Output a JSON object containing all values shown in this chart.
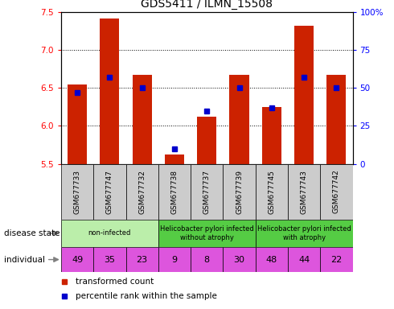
{
  "title": "GDS5411 / ILMN_15508",
  "samples": [
    "GSM677733",
    "GSM677747",
    "GSM677732",
    "GSM677738",
    "GSM677737",
    "GSM677739",
    "GSM677745",
    "GSM677743",
    "GSM677742"
  ],
  "transformed_count": [
    6.55,
    7.42,
    6.68,
    5.62,
    6.12,
    6.68,
    6.25,
    7.32,
    6.68
  ],
  "percentile_rank": [
    47,
    57,
    50,
    10,
    35,
    50,
    37,
    57,
    50
  ],
  "ylim": [
    5.5,
    7.5
  ],
  "y2lim": [
    0,
    100
  ],
  "yticks": [
    5.5,
    6.0,
    6.5,
    7.0,
    7.5
  ],
  "y2ticks": [
    0,
    25,
    50,
    75,
    100
  ],
  "y2ticklabels": [
    "0",
    "25",
    "50",
    "75",
    "100%"
  ],
  "bar_color": "#cc2200",
  "marker_color": "#0000cc",
  "group_spans": [
    {
      "start": 0,
      "end": 3,
      "label": "non-infected",
      "color": "#bbeeaa"
    },
    {
      "start": 3,
      "end": 6,
      "label": "Helicobacter pylori infected\nwithout atrophy",
      "color": "#55cc44"
    },
    {
      "start": 6,
      "end": 9,
      "label": "Helicobacter pylori infected\nwith atrophy",
      "color": "#55cc44"
    }
  ],
  "individual": [
    "49",
    "35",
    "23",
    "9",
    "8",
    "30",
    "48",
    "44",
    "22"
  ],
  "individual_color": "#dd55dd",
  "xlabel_bg": "#cccccc",
  "legend_red_label": "transformed count",
  "legend_blue_label": "percentile rank within the sample",
  "disease_state_label": "disease state",
  "individual_label": "individual"
}
